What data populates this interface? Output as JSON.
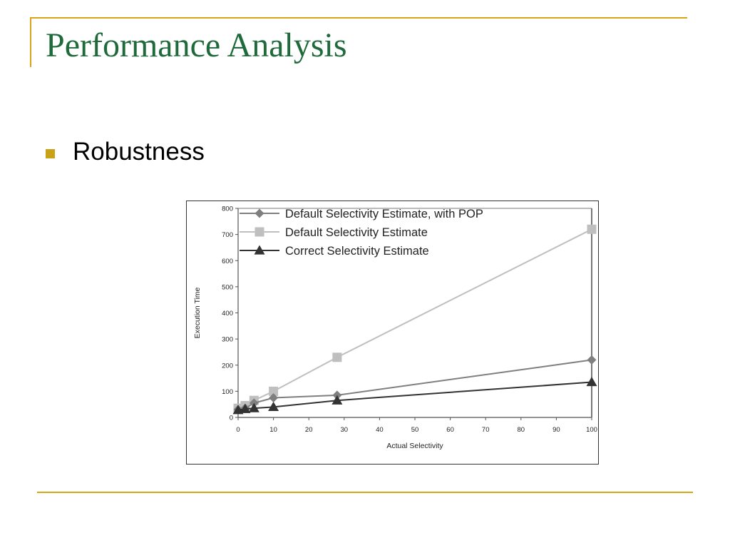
{
  "slide": {
    "title": "Performance Analysis",
    "bullets": [
      "Robustness"
    ]
  },
  "colors": {
    "title": "#1f6a3a",
    "accent_rule": "#d9a41a",
    "bullet": "#c9a217"
  },
  "chart_data": {
    "type": "line",
    "xlabel": "Actual Selectivity",
    "ylabel": "Execution Time",
    "xlim": [
      0,
      100
    ],
    "ylim": [
      0,
      800
    ],
    "xticks": [
      0,
      10,
      20,
      30,
      40,
      50,
      60,
      70,
      80,
      90,
      100
    ],
    "yticks": [
      0,
      100,
      200,
      300,
      400,
      500,
      600,
      700,
      800
    ],
    "grid": false,
    "legend_position": "top-left",
    "series": [
      {
        "name": "Default Selectivity Estimate, with POP",
        "marker": "diamond",
        "color": "#7f7f7f",
        "points": [
          [
            0,
            30
          ],
          [
            2,
            35
          ],
          [
            4.5,
            55
          ],
          [
            10,
            75
          ],
          [
            28,
            85
          ],
          [
            100,
            220
          ]
        ]
      },
      {
        "name": "Default Selectivity Estimate",
        "marker": "square",
        "color": "#bfbfbf",
        "points": [
          [
            0,
            35
          ],
          [
            2,
            45
          ],
          [
            4.5,
            65
          ],
          [
            10,
            100
          ],
          [
            28,
            230
          ],
          [
            100,
            720
          ]
        ]
      },
      {
        "name": "Correct Selectivity Estimate",
        "marker": "triangle",
        "color": "#333333",
        "points": [
          [
            0,
            28
          ],
          [
            2,
            32
          ],
          [
            4.5,
            35
          ],
          [
            10,
            40
          ],
          [
            28,
            65
          ],
          [
            100,
            135
          ]
        ]
      }
    ]
  }
}
